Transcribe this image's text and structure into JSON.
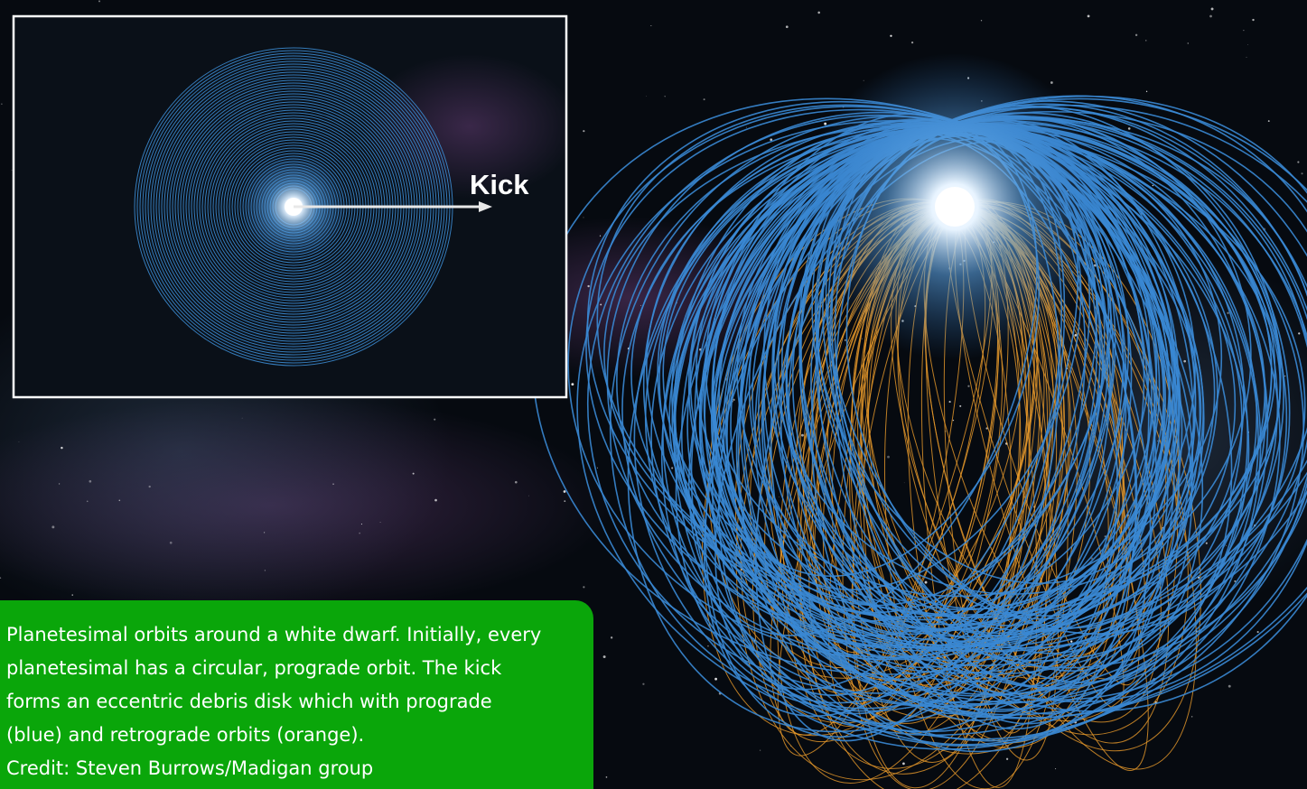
{
  "inset": {
    "label": "Kick"
  },
  "caption": {
    "lines": [
      "Planetesimal orbits around a white dwarf. Initially, every",
      "planetesimal has a circular, prograde orbit. The kick",
      "forms an eccentric debris disk which with prograde",
      "(blue) and retrograde orbits (orange)."
    ],
    "credit": "Credit: Steven Burrows/Madigan group"
  }
}
